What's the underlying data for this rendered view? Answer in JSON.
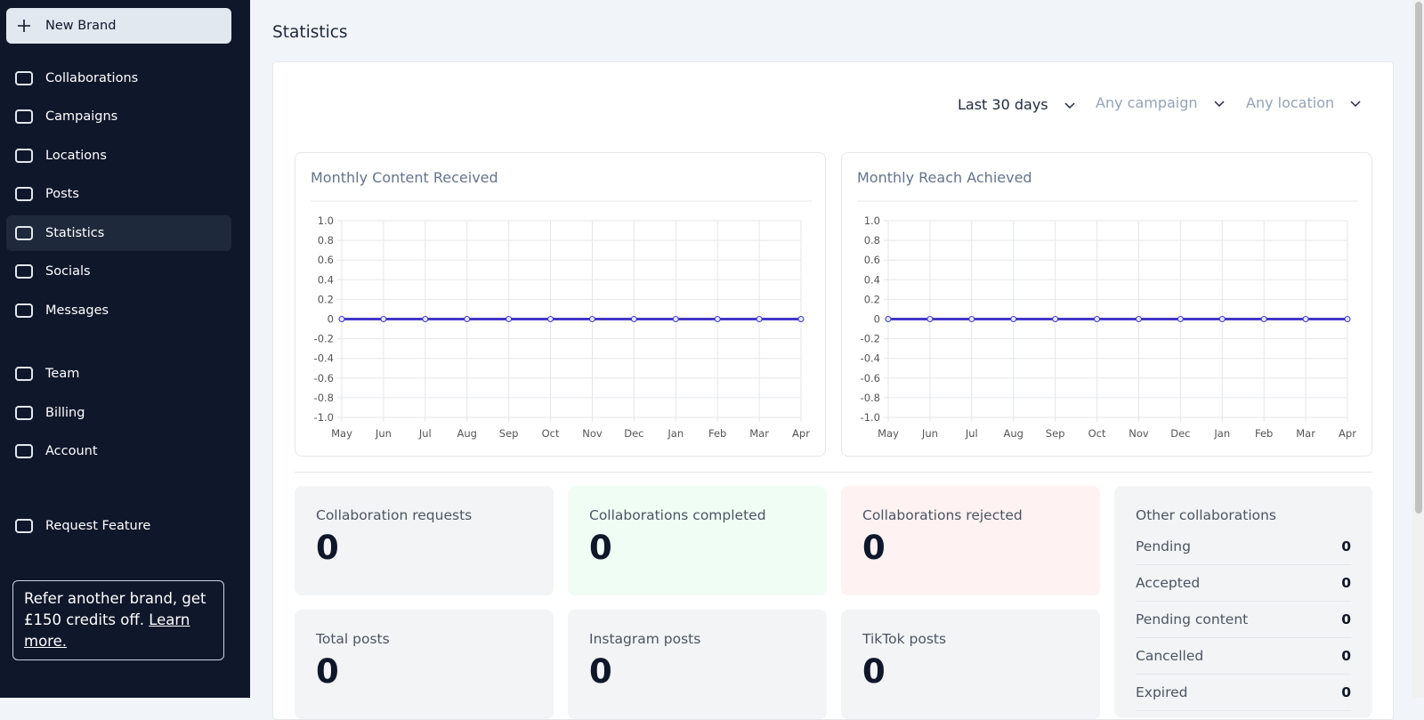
{
  "sidebar": {
    "new_brand": "New Brand",
    "nav": [
      "Collaborations",
      "Campaigns",
      "Locations",
      "Posts",
      "Statistics",
      "Socials",
      "Messages"
    ],
    "nav2": [
      "Team",
      "Billing",
      "Account"
    ],
    "request": "Request Feature",
    "referral": {
      "text": "Refer another brand, get £150 credits off.",
      "link": "Learn more."
    }
  },
  "page_title": "Statistics",
  "filters": [
    "Last 30 days",
    "Any campaign",
    "Any location"
  ],
  "chart_data": [
    {
      "type": "line",
      "title": "Monthly Content Received",
      "categories": [
        "May",
        "Jun",
        "Jul",
        "Aug",
        "Sep",
        "Oct",
        "Nov",
        "Dec",
        "Jan",
        "Feb",
        "Mar",
        "Apr"
      ],
      "values": [
        0,
        0,
        0,
        0,
        0,
        0,
        0,
        0,
        0,
        0,
        0,
        0
      ],
      "color": "#4338ca",
      "ylim": [
        -1,
        1
      ],
      "yticks": [
        {
          "value": 1,
          "label": "1.0"
        },
        0.8,
        0.6,
        0.4,
        0.2,
        0,
        -0.2,
        -0.4,
        -0.6,
        -0.8,
        {
          "value": -1,
          "label": "-1.0"
        }
      ],
      "grid": true
    },
    {
      "type": "line",
      "title": "Monthly Reach Achieved",
      "categories": [
        "May",
        "Jun",
        "Jul",
        "Aug",
        "Sep",
        "Oct",
        "Nov",
        "Dec",
        "Jan",
        "Feb",
        "Mar",
        "Apr"
      ],
      "values": [
        0,
        0,
        0,
        0,
        0,
        0,
        0,
        0,
        0,
        0,
        0,
        0
      ],
      "color": "#4338ca",
      "ylim": [
        -1,
        1
      ],
      "yticks": [
        {
          "value": 1,
          "label": "1.0"
        },
        0.8,
        0.6,
        0.4,
        0.2,
        0,
        -0.2,
        -0.4,
        -0.6,
        -0.8,
        {
          "value": -1,
          "label": "-1.0"
        }
      ],
      "grid": true
    }
  ],
  "stats": [
    {
      "label": "Collaboration requests",
      "value": 0
    },
    {
      "label": "Collaborations completed",
      "value": 0
    },
    {
      "label": "Collaborations rejected",
      "value": 0
    },
    {
      "label": "Total posts",
      "value": 0
    },
    {
      "label": "Instagram posts",
      "value": 0
    },
    {
      "label": "TikTok posts",
      "value": 0
    }
  ],
  "other": {
    "title": "Other collaborations",
    "rows": [
      {
        "label": "Pending",
        "value": 0
      },
      {
        "label": "Accepted",
        "value": 0
      },
      {
        "label": "Pending content",
        "value": 0
      },
      {
        "label": "Cancelled",
        "value": 0
      },
      {
        "label": "Expired",
        "value": 0
      }
    ]
  }
}
